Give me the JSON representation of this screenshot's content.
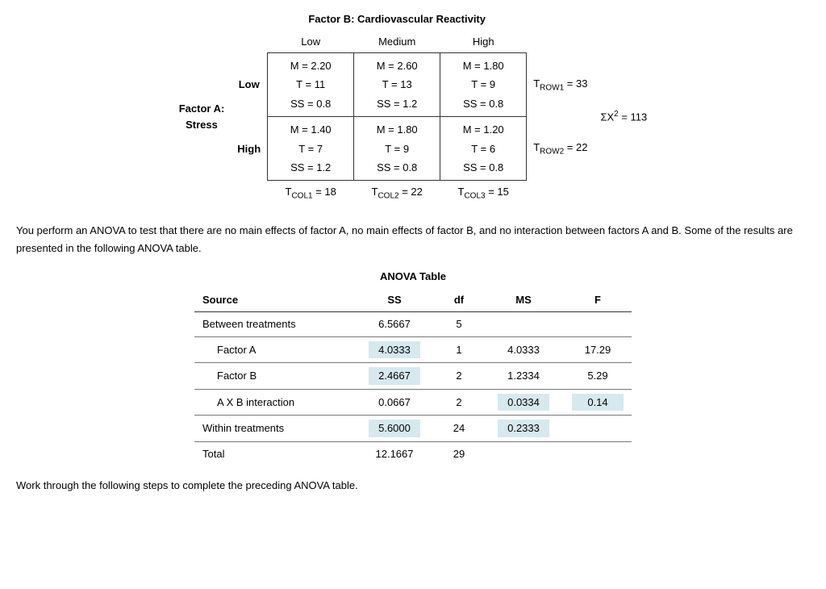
{
  "design": {
    "factorB_title": "Factor B: Cardiovascular Reactivity",
    "factorA_line1": "Factor A:",
    "factorA_line2": "Stress",
    "col_labels": [
      "Low",
      "Medium",
      "High"
    ],
    "row_labels": [
      "Low",
      "High"
    ],
    "cells": [
      [
        {
          "M": "M = 2.20",
          "T": "T = 11",
          "SS": "SS = 0.8"
        },
        {
          "M": "M = 2.60",
          "T": "T = 13",
          "SS": "SS = 1.2"
        },
        {
          "M": "M = 1.80",
          "T": "T = 9",
          "SS": "SS = 0.8"
        }
      ],
      [
        {
          "M": "M = 1.40",
          "T": "T = 7",
          "SS": "SS = 1.2"
        },
        {
          "M": "M = 1.80",
          "T": "T = 9",
          "SS": "SS = 0.8"
        },
        {
          "M": "M = 1.20",
          "T": "T = 6",
          "SS": "SS = 0.8"
        }
      ]
    ],
    "row_totals": [
      "= 33",
      "= 22"
    ],
    "row_total_prefix": "T",
    "row_total_subs": [
      "ROW1",
      "ROW2"
    ],
    "col_totals": [
      "= 18",
      "= 22",
      "= 15"
    ],
    "col_total_prefix": "T",
    "col_total_subs": [
      "COL1",
      "COL2",
      "COL3"
    ],
    "sumsq_label": "ΣX",
    "sumsq_sup": "2",
    "sumsq_value": " = 113"
  },
  "paragraph1": "You perform an ANOVA to test that there are no main effects of factor A, no main effects of factor B, and no interaction between factors A and B. Some of the results are presented in the following ANOVA table.",
  "anova": {
    "title": "ANOVA Table",
    "headers": [
      "Source",
      "SS",
      "df",
      "MS",
      "F"
    ],
    "rows": [
      {
        "src": "Between treatments",
        "indent": false,
        "SS": "6.5667",
        "SS_hl": false,
        "df": "5",
        "df_hl": false,
        "MS": "",
        "MS_hl": false,
        "F": "",
        "F_hl": false
      },
      {
        "src": "Factor A",
        "indent": true,
        "SS": "4.0333",
        "SS_hl": true,
        "df": "1",
        "df_hl": false,
        "MS": "4.0333",
        "MS_hl": false,
        "F": "17.29",
        "F_hl": false
      },
      {
        "src": "Factor B",
        "indent": true,
        "SS": "2.4667",
        "SS_hl": true,
        "df": "2",
        "df_hl": false,
        "MS": "1.2334",
        "MS_hl": false,
        "F": "5.29",
        "F_hl": false
      },
      {
        "src": "A X B interaction",
        "indent": true,
        "SS": "0.0667",
        "SS_hl": false,
        "df": "2",
        "df_hl": false,
        "MS": "0.0334",
        "MS_hl": true,
        "F": "0.14",
        "F_hl": true
      },
      {
        "src": "Within treatments",
        "indent": false,
        "SS": "5.6000",
        "SS_hl": true,
        "df": "24",
        "df_hl": false,
        "MS": "0.2333",
        "MS_hl": true,
        "F": "",
        "F_hl": false
      },
      {
        "src": "Total",
        "indent": false,
        "SS": "12.1667",
        "SS_hl": false,
        "df": "29",
        "df_hl": false,
        "MS": "",
        "MS_hl": false,
        "F": "",
        "F_hl": false
      }
    ]
  },
  "paragraph2": "Work through the following steps to complete the preceding ANOVA table.",
  "style": {
    "highlight_bg": "#d6e9ee",
    "border_color": "#333333",
    "font_family": "Verdana, Geneva, sans-serif",
    "body_font_size": 13
  }
}
